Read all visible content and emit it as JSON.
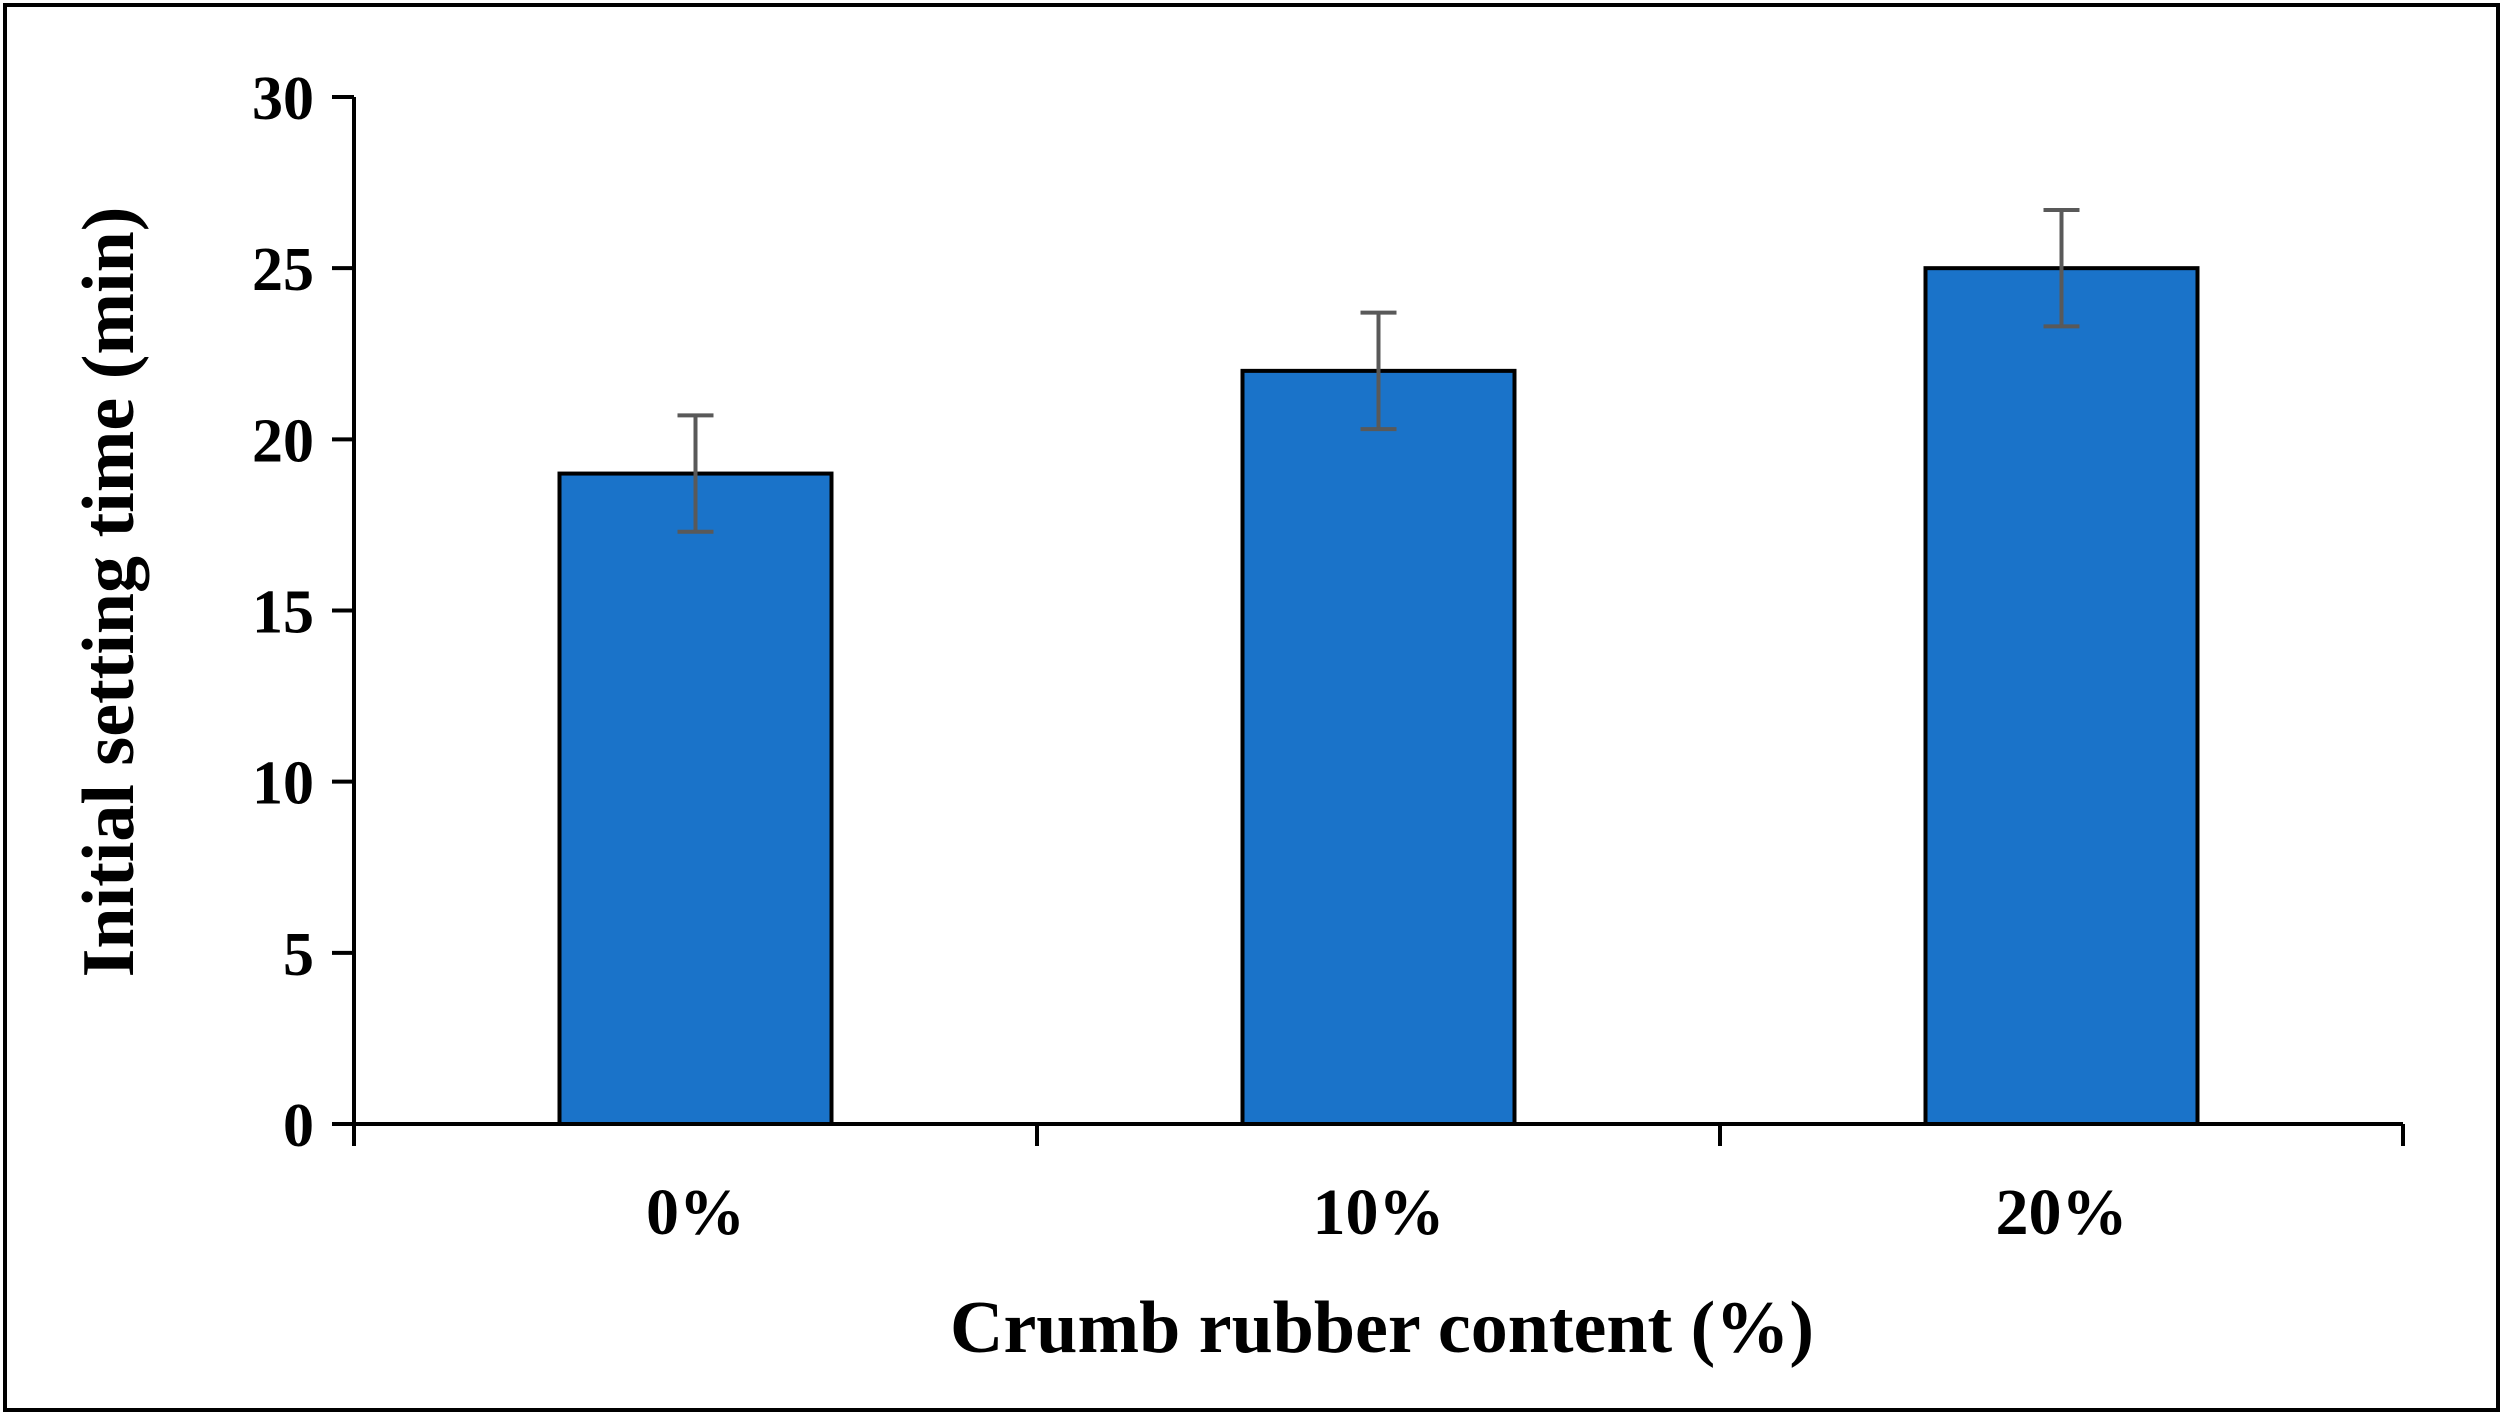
{
  "chart_data": {
    "type": "bar",
    "title": "",
    "xlabel": "Crumb rubber content (%)",
    "ylabel": "Initial setting time (min)",
    "categories": [
      "0%",
      "10%",
      "20%"
    ],
    "values": [
      19,
      22,
      25
    ],
    "error_bars": [
      1.7,
      1.7,
      1.7
    ],
    "ylim": [
      0,
      30
    ],
    "yticks": [
      0,
      5,
      10,
      15,
      20,
      25,
      30
    ],
    "ytick_labels": [
      "0",
      "5",
      "10",
      "15",
      "20",
      "25",
      "30"
    ],
    "grid": false,
    "legend": "none",
    "colors": {
      "bar_fill": "#1a73c9",
      "bar_stroke": "#000000",
      "error_bar": "#595959",
      "axis": "#000000",
      "frame": "#000000"
    }
  }
}
